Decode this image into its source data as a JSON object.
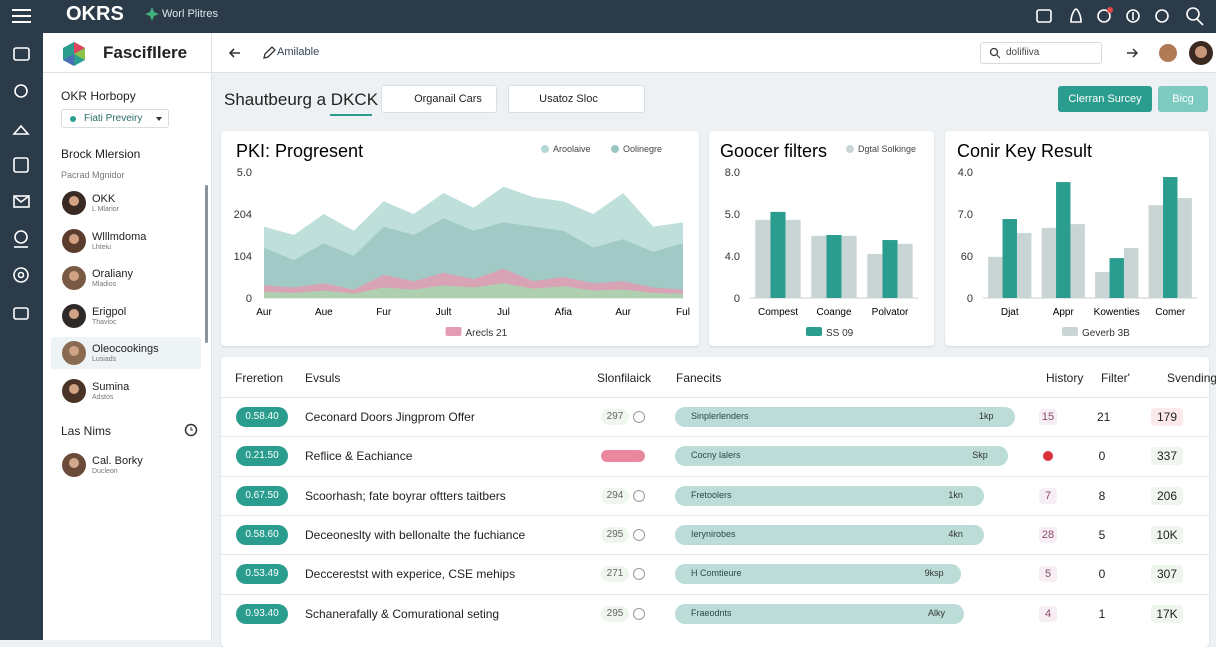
{
  "topbar": {
    "logo": "OKRS",
    "workspace": "Worl Plitres"
  },
  "sidebar": {
    "brand": "FascifIlere",
    "section": "OKR Horbopy",
    "badge": "Fiati Preveiry",
    "group": "Brock Mlersion",
    "subgroup": "Pacrad Mgnidor",
    "people": [
      {
        "name": "OKK",
        "role": "L Mlarior"
      },
      {
        "name": "Wlllmdoma",
        "role": "Lhteiu"
      },
      {
        "name": "Oraliany",
        "role": "Mladios"
      },
      {
        "name": "Erigpol",
        "role": "Thavioc"
      },
      {
        "name": "Oleocookings",
        "role": "Lusiads"
      },
      {
        "name": "Sumina",
        "role": "Adstos"
      }
    ],
    "footer_title": "Las Nims",
    "footer_person": {
      "name": "Cal. Borky",
      "role": "Ducleon"
    }
  },
  "header": {
    "link": "Amilable",
    "search": "dolifiiva"
  },
  "toolbar": {
    "title": "Shautbeurg a DKCK",
    "filter_button": "Organail Cars",
    "dropdown": "Usatoz Sloc",
    "primary_button": "Clerran Surcey",
    "secondary_button": "Bicg"
  },
  "charts": [
    {
      "type": "area",
      "title": "PKI: Progresent",
      "categories": [
        "Aur",
        null,
        "Aue",
        null,
        "Fur",
        null,
        "Jult",
        null,
        "Jul",
        null,
        "Afia",
        null,
        "Aur",
        null,
        "Ful"
      ],
      "ylim": [
        0,
        300
      ],
      "y_labels": [
        "0",
        "104",
        "204",
        "5.0"
      ],
      "series": [
        {
          "name": "Aroolaive",
          "color": "#b3d9d4",
          "legend": "top",
          "values": [
            170,
            150,
            200,
            160,
            230,
            200,
            250,
            215,
            265,
            240,
            230,
            200,
            250,
            170,
            180
          ]
        },
        {
          "name": "Oolinegre",
          "color": "#9cc6c2",
          "legend": "top",
          "values": [
            120,
            90,
            130,
            100,
            170,
            150,
            190,
            160,
            180,
            170,
            160,
            120,
            140,
            110,
            130
          ]
        },
        {
          "name": "Arecls 21",
          "color": "#e39cb3",
          "legend": "bottom",
          "values": [
            30,
            25,
            35,
            20,
            55,
            40,
            60,
            45,
            70,
            40,
            50,
            35,
            40,
            25,
            20
          ]
        },
        {
          "color": "#a6d8b0",
          "values": [
            15,
            12,
            18,
            10,
            25,
            20,
            30,
            25,
            35,
            22,
            28,
            18,
            20,
            12,
            10
          ]
        }
      ]
    },
    {
      "type": "bar",
      "title": "Goocer filters",
      "categories": [
        "Compest",
        "Coange",
        "Polvator"
      ],
      "ylim": [
        0,
        3
      ],
      "y_labels": [
        "0",
        "4.0",
        "5.0",
        "8.0"
      ],
      "series": [
        {
          "name": "Dgtal Solkinge",
          "color": "#c9d5d5",
          "legend": "top",
          "values": [
            1.86,
            1.48,
            1.05
          ]
        },
        {
          "name": "SS 09",
          "color": "#2a9d8f",
          "legend": "bottom",
          "values": [
            2.05,
            1.5,
            1.38
          ]
        },
        {
          "color": "#c9d5d5",
          "values": [
            1.86,
            1.48,
            1.29
          ]
        }
      ]
    },
    {
      "type": "bar",
      "title": "Conir Key Result",
      "categories": [
        "Djat",
        "Appr",
        "Kowenties",
        "Comer"
      ],
      "ylim": [
        0,
        3
      ],
      "y_labels": [
        "0",
        "60",
        "7.0",
        "4.0"
      ],
      "series": [
        {
          "name": "Geverb 3B",
          "color": "#c9d5d5",
          "legend": "bottom",
          "values": [
            0.98,
            1.67,
            0.62,
            2.21
          ]
        },
        {
          "color": "#2a9d8f",
          "values": [
            1.88,
            2.76,
            0.95,
            2.88
          ]
        },
        {
          "color": "#c9d5d5",
          "values": [
            1.55,
            1.76,
            1.19,
            2.38
          ]
        }
      ]
    }
  ],
  "table": {
    "columns": [
      "Freretion",
      "Evsuls",
      "Slonfilaick",
      "Fanecits",
      "History",
      "Filter'",
      "Svending"
    ],
    "rows": [
      {
        "time": "0.58.40",
        "desc": "Ceconard Doors Jingprom Offer",
        "tag": "297",
        "bar_label": "Sinplerlenders",
        "bar_end": "1kp",
        "progress": 100,
        "history": "15",
        "filter": "21",
        "spend": "179"
      },
      {
        "time": "0.21.50",
        "desc": "Reflice & Eachiance",
        "bar_label": "Cocny lalers",
        "bar_end": "Skp",
        "progress": 98,
        "filter": "0",
        "spend": "337"
      },
      {
        "time": "0.67.50",
        "desc": "Scoorhash; fate boyrar oftters taitbers",
        "tag": "294",
        "bar_label": "Fretoolers",
        "bar_end": "1kn",
        "progress": 91,
        "history": "7",
        "filter": "8",
        "spend": "206"
      },
      {
        "time": "0.58.60",
        "desc": "Deceoneslty with bellonalte the fuchiance",
        "tag": "295",
        "bar_label": "Ierynirobes",
        "bar_end": "4kn",
        "progress": 91,
        "history": "28",
        "filter": "5",
        "spend": "10K"
      },
      {
        "time": "0.53.49",
        "desc": "Deccerestst with experice, CSE mehips",
        "tag": "271",
        "bar_label": "H Comtieure",
        "bar_end": "9ksp",
        "progress": 84,
        "history": "5",
        "filter": "0",
        "spend": "307"
      },
      {
        "time": "0.93.40",
        "desc": "Schanerafally & Comurational seting",
        "tag": "295",
        "bar_label": "Fraeodnts",
        "bar_end": "Alky",
        "progress": 85,
        "history": "4",
        "filter": "1",
        "spend": "17K"
      }
    ]
  }
}
